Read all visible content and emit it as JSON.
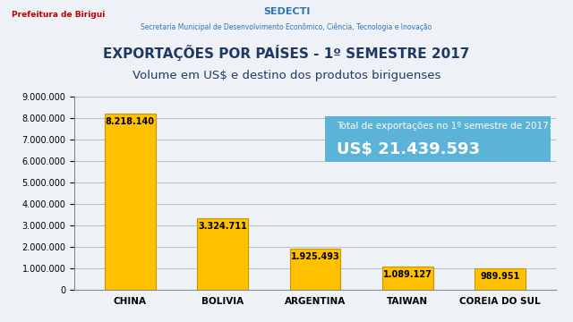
{
  "chart_data": {
    "type": "bar",
    "title": "EXPORTAÇÕES POR PAÍSES - 1º SEMESTRE 2017",
    "subtitle": "Volume em US$ e destino dos produtos biriguenses",
    "annotations": [
      "Total de exportações no 1º semestre de 2017:",
      "US$ 21.439.593"
    ],
    "header": [
      "Prefeitura de Birigui",
      "SEDECTI",
      "Secretaria Municipal de Desenvolvimento Econômico, Ciência, Tecnologia e Inovação"
    ],
    "categories": [
      "CHINA",
      "BOLIVIA",
      "ARGENTINA",
      "TAIWAN",
      "COREIA DO SUL"
    ],
    "values": [
      8218140,
      3324711,
      1925493,
      1089127,
      989951
    ],
    "value_labels": [
      "8.218.140",
      "3.324.711",
      "1.925.493",
      "1.089.127",
      "989.951"
    ],
    "color": "#ffc000",
    "data_labels": true,
    "ylim": [
      0,
      9000000
    ],
    "yticks": [
      0,
      {
        "value": 1000000,
        "label": "1.000.000"
      },
      {
        "value": 2000000,
        "label": "2.000.000"
      },
      {
        "value": 3000000,
        "label": "3.000.000"
      },
      {
        "value": 4000000,
        "label": "4.000.000"
      },
      {
        "value": 5000000,
        "label": "5.000.000"
      },
      {
        "value": 6000000,
        "label": "6.000.000"
      },
      {
        "value": 7000000,
        "label": "7.000.000"
      },
      {
        "value": 8000000,
        "label": "8.000.000"
      },
      {
        "value": 9000000,
        "label": "9.000.000"
      }
    ],
    "grid": true
  }
}
